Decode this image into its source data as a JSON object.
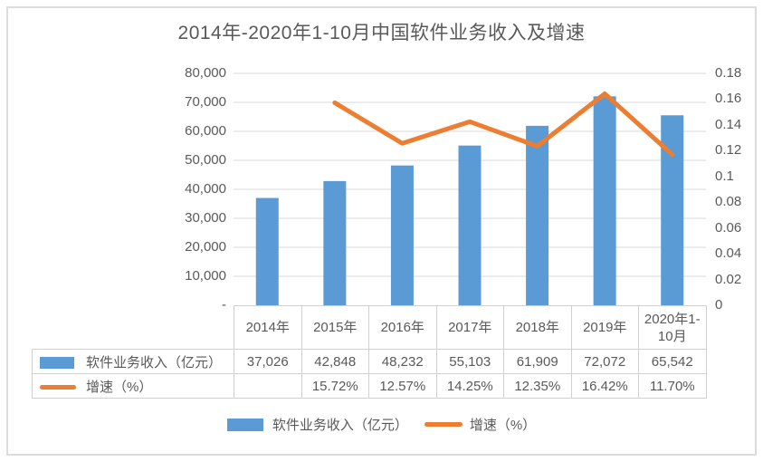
{
  "title": "2014年-2020年1-10月中国软件业务收入及增速",
  "chart_data": {
    "type": "combo",
    "title": "2014年-2020年1-10月中国软件业务收入及增速",
    "categories": [
      "2014年",
      "2015年",
      "2016年",
      "2017年",
      "2018年",
      "2019年",
      "2020年1-10月"
    ],
    "series": [
      {
        "name": "软件业务收入（亿元）",
        "type": "bar",
        "axis": "left",
        "color": "#5b9bd5",
        "values": [
          37026,
          42848,
          48232,
          55103,
          61909,
          72072,
          65542
        ],
        "display_values": [
          "37,026",
          "42,848",
          "48,232",
          "55,103",
          "61,909",
          "72,072",
          "65,542"
        ]
      },
      {
        "name": "增速（%）",
        "type": "line",
        "axis": "right",
        "color": "#ed7d31",
        "values": [
          null,
          0.1572,
          0.1257,
          0.1425,
          0.1235,
          0.1642,
          0.117
        ],
        "display_values": [
          "",
          "15.72%",
          "12.57%",
          "14.25%",
          "12.35%",
          "16.42%",
          "11.70%"
        ]
      }
    ],
    "left_axis": {
      "min": 0,
      "max": 80000,
      "step": 10000,
      "tick_labels": [
        "80,000",
        "70,000",
        "60,000",
        "50,000",
        "40,000",
        "30,000",
        "20,000",
        "10,000",
        "-"
      ]
    },
    "right_axis": {
      "min": 0,
      "max": 0.18,
      "step": 0.02,
      "tick_labels": [
        "0.18",
        "0.16",
        "0.14",
        "0.12",
        "0.1",
        "0.08",
        "0.06",
        "0.04",
        "0.02",
        "0"
      ]
    },
    "grid": true,
    "legend_position": "bottom",
    "colors": {
      "bar": "#5b9bd5",
      "line": "#ed7d31",
      "gridline": "#d9d9d9",
      "text": "#595959",
      "table_border": "#d0d0d0",
      "frame_border": "#dcdcdc"
    }
  }
}
